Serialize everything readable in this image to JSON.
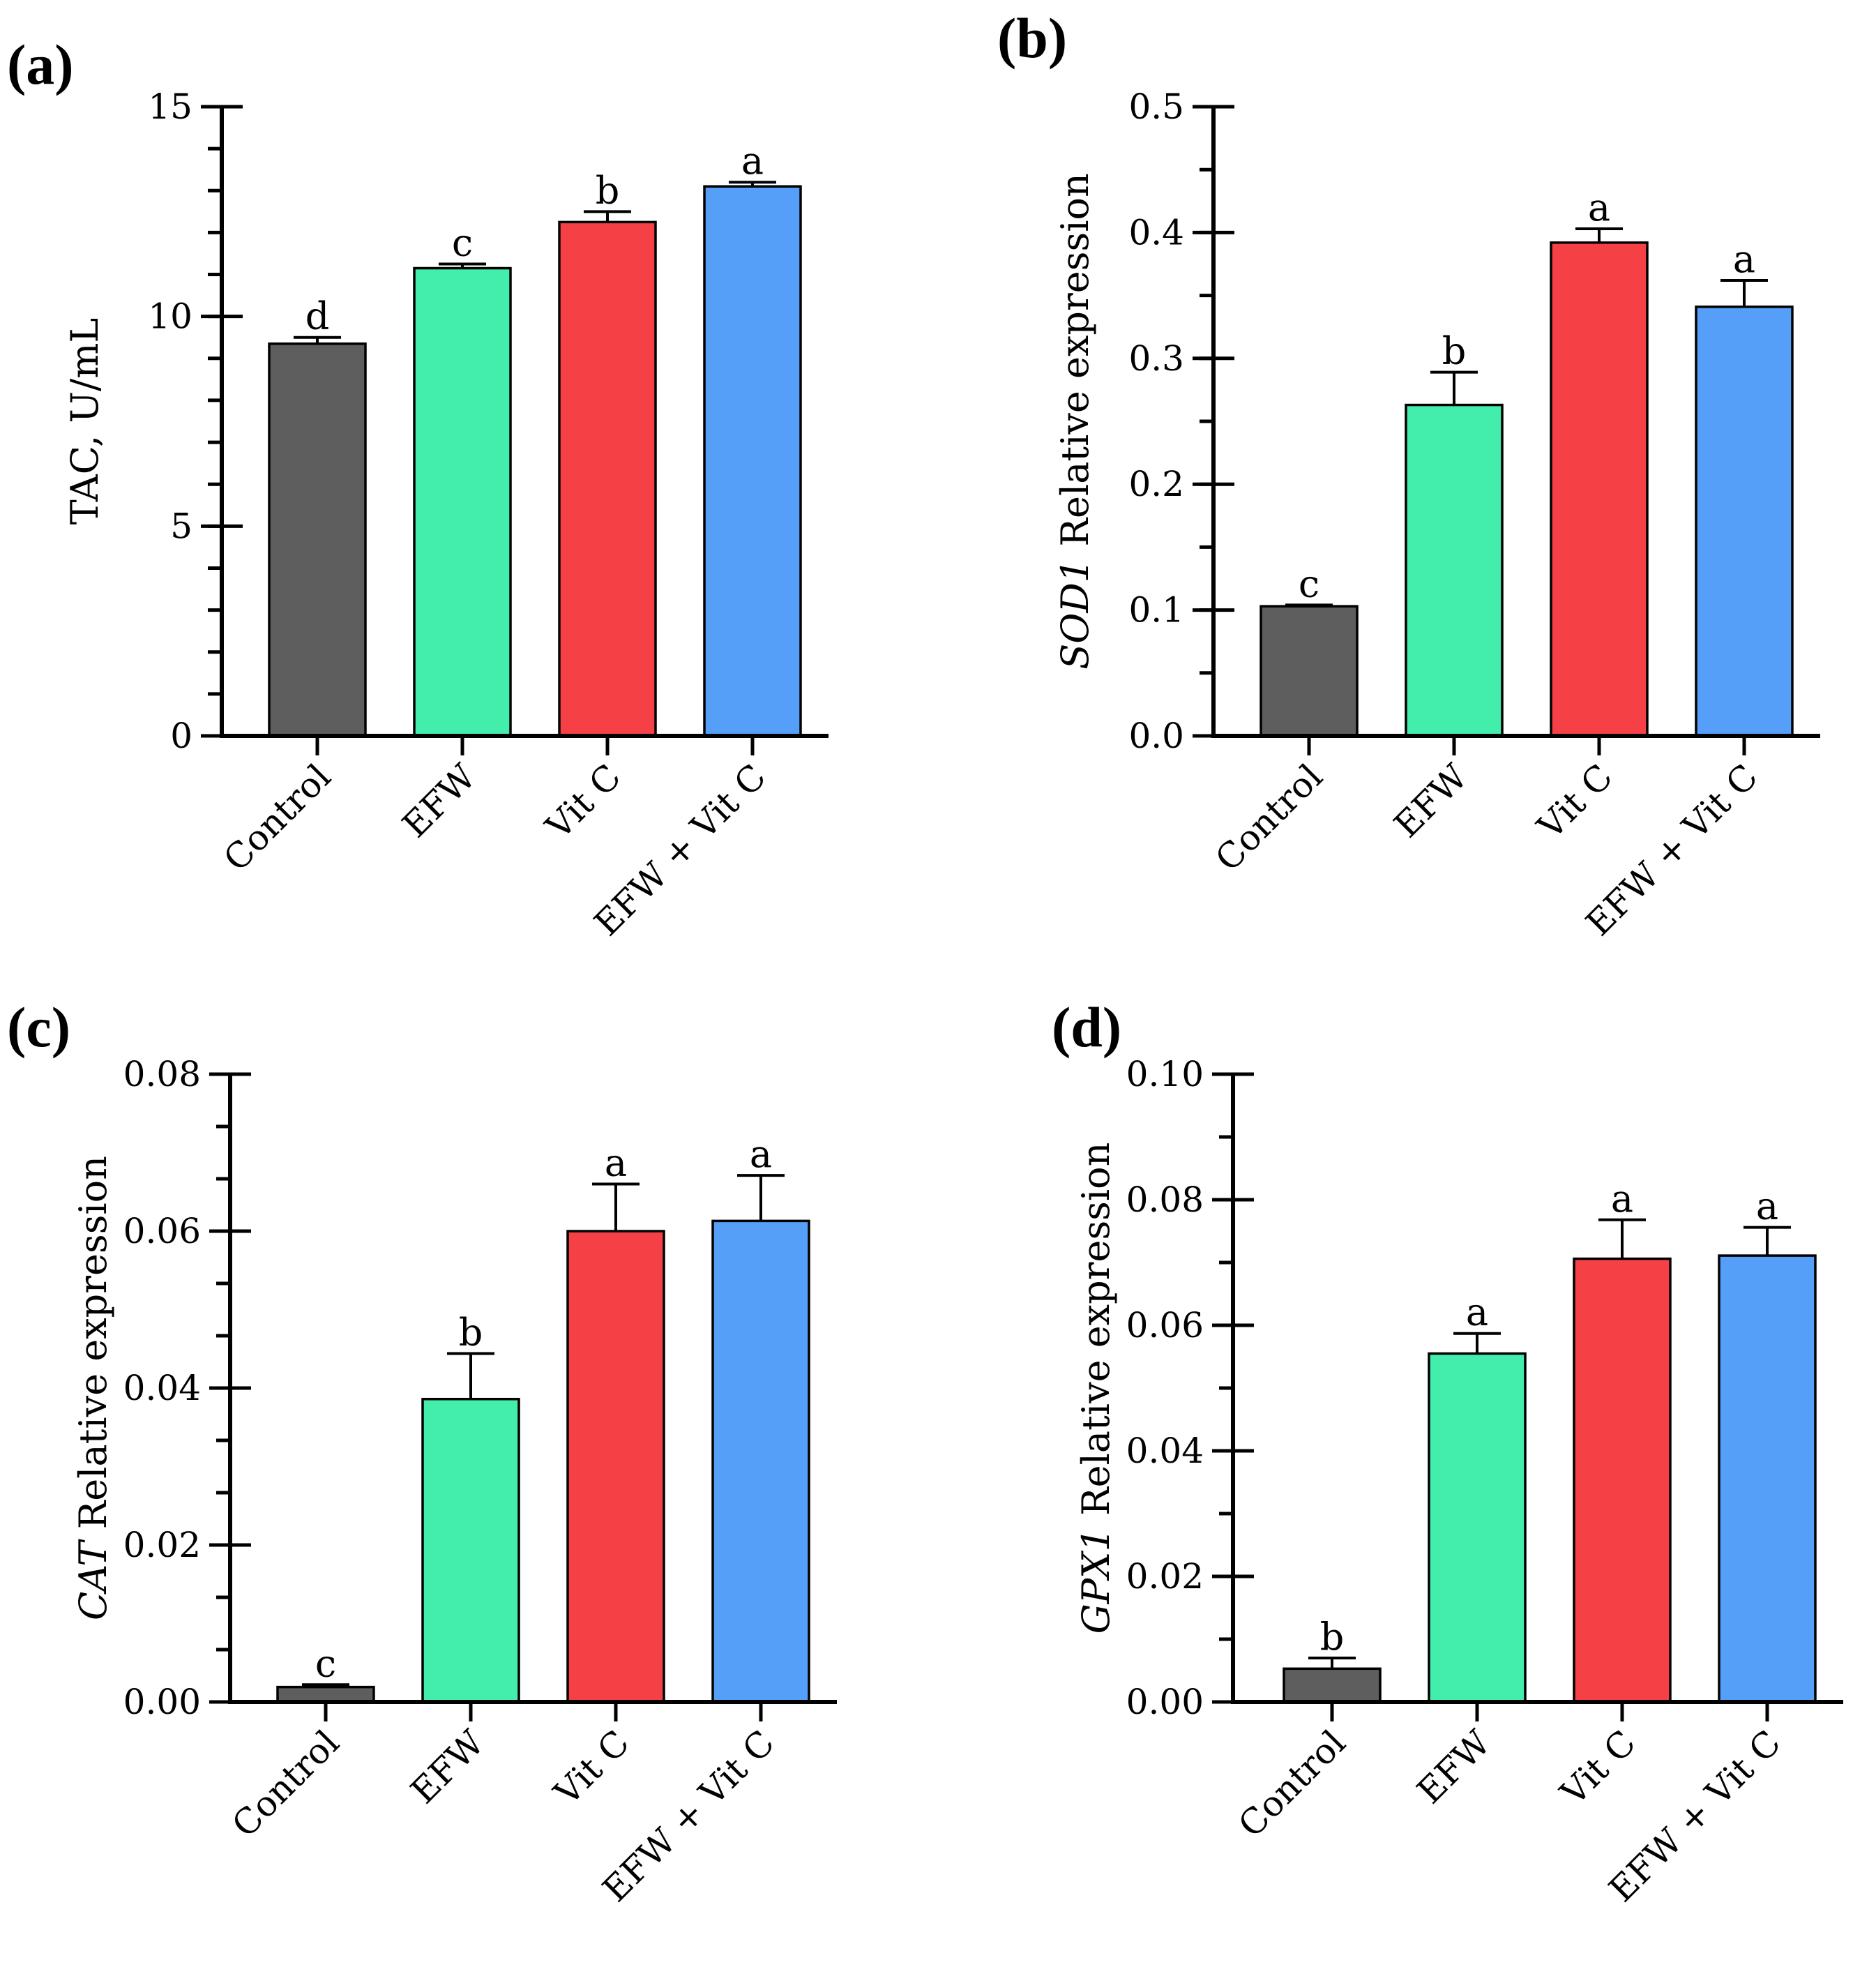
{
  "chart_data": [
    {
      "panel": "(a)",
      "type": "bar",
      "ylabel": [
        {
          "text": "TAC, U/mL",
          "italic": false
        }
      ],
      "categories": [
        "Control",
        "EFW",
        "Vit C",
        "EFW + Vit C"
      ],
      "values": [
        9.35,
        11.15,
        12.25,
        13.1
      ],
      "errors": [
        0.15,
        0.1,
        0.25,
        0.1
      ],
      "significance": [
        "d",
        "c",
        "b",
        "a"
      ],
      "ylim": [
        0,
        15
      ],
      "major_ticks": [
        0,
        5,
        10,
        15
      ],
      "tick_labels": [
        "0",
        "5",
        "10",
        "15"
      ],
      "minor_step": 1
    },
    {
      "panel": "(b)",
      "type": "bar",
      "ylabel": [
        {
          "text": "SOD1",
          "italic": true
        },
        {
          "text": " Relative expression",
          "italic": false
        }
      ],
      "categories": [
        "Control",
        "EFW",
        "Vit C",
        "EFW + Vit C"
      ],
      "values": [
        0.103,
        0.263,
        0.392,
        0.341
      ],
      "errors": [
        0.001,
        0.026,
        0.011,
        0.021
      ],
      "significance": [
        "c",
        "b",
        "a",
        "a"
      ],
      "ylim": [
        0,
        0.5
      ],
      "major_ticks": [
        0,
        0.1,
        0.2,
        0.3,
        0.4,
        0.5
      ],
      "tick_labels": [
        "0.0",
        "0.1",
        "0.2",
        "0.3",
        "0.4",
        "0.5"
      ],
      "minor_step": 0.05
    },
    {
      "panel": "(c)",
      "type": "bar",
      "ylabel": [
        {
          "text": "CAT",
          "italic": true
        },
        {
          "text": " Relative expression",
          "italic": false
        }
      ],
      "categories": [
        "Control",
        "EFW",
        "Vit C",
        "EFW + Vit C"
      ],
      "values": [
        0.0019,
        0.0386,
        0.06,
        0.0613
      ],
      "errors": [
        0.0003,
        0.0058,
        0.006,
        0.0058
      ],
      "significance": [
        "c",
        "b",
        "a",
        "a"
      ],
      "ylim": [
        0,
        0.08
      ],
      "major_ticks": [
        0,
        0.02,
        0.04,
        0.06,
        0.08
      ],
      "tick_labels": [
        "0.00",
        "0.02",
        "0.04",
        "0.06",
        "0.08"
      ],
      "minor_step": 0.0066667
    },
    {
      "panel": "(d)",
      "type": "bar",
      "ylabel": [
        {
          "text": "GPX1",
          "italic": true
        },
        {
          "text": " Relative expression",
          "italic": false
        }
      ],
      "categories": [
        "Control",
        "EFW",
        "Vit C",
        "EFW + Vit C"
      ],
      "values": [
        0.0053,
        0.0555,
        0.0706,
        0.0711
      ],
      "errors": [
        0.0017,
        0.0032,
        0.0062,
        0.0045
      ],
      "significance": [
        "b",
        "a",
        "a",
        "a"
      ],
      "ylim": [
        0,
        0.1
      ],
      "major_ticks": [
        0,
        0.02,
        0.04,
        0.06,
        0.08,
        0.1
      ],
      "tick_labels": [
        "0.00",
        "0.02",
        "0.04",
        "0.06",
        "0.08",
        "0.10"
      ],
      "minor_step": 0.01
    }
  ],
  "colors": {
    "Control": "#5e5e5e",
    "EFW": "#43edab",
    "Vit C": "#f54145",
    "EFW + Vit C": "#559ff9",
    "axis": "#000000"
  }
}
